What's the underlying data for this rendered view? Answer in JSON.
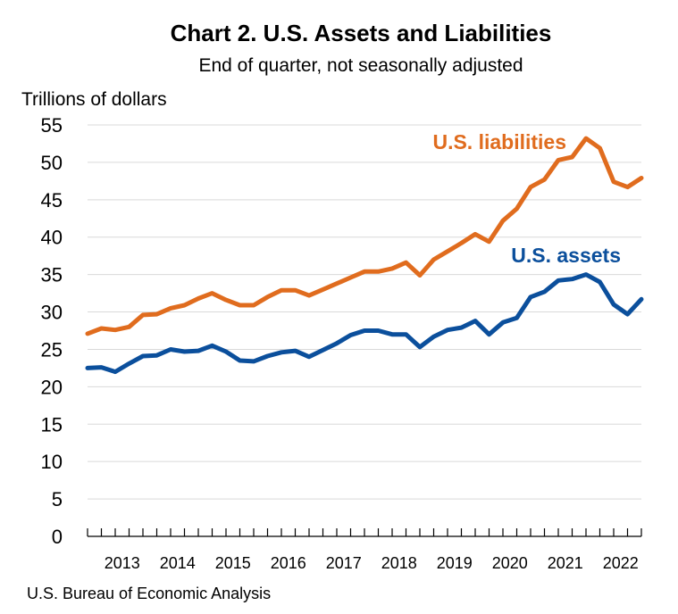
{
  "chart_data": {
    "type": "line",
    "title": "Chart 2. U.S. Assets and Liabilities",
    "subtitle": "End of quarter, not seasonally adjusted",
    "ylabel": "Trillions of dollars",
    "xlabel": "",
    "ylim": [
      0,
      55
    ],
    "yticks": [
      0,
      5,
      10,
      15,
      20,
      25,
      30,
      35,
      40,
      45,
      50,
      55
    ],
    "grid": true,
    "x_year_labels": [
      "2013",
      "2014",
      "2015",
      "2016",
      "2017",
      "2018",
      "2019",
      "2020",
      "2021",
      "2022"
    ],
    "x": [
      "2012 Q4",
      "2013 Q1",
      "2013 Q2",
      "2013 Q3",
      "2013 Q4",
      "2014 Q1",
      "2014 Q2",
      "2014 Q3",
      "2014 Q4",
      "2015 Q1",
      "2015 Q2",
      "2015 Q3",
      "2015 Q4",
      "2016 Q1",
      "2016 Q2",
      "2016 Q3",
      "2016 Q4",
      "2017 Q1",
      "2017 Q2",
      "2017 Q3",
      "2017 Q4",
      "2018 Q1",
      "2018 Q2",
      "2018 Q3",
      "2018 Q4",
      "2019 Q1",
      "2019 Q2",
      "2019 Q3",
      "2019 Q4",
      "2020 Q1",
      "2020 Q2",
      "2020 Q3",
      "2020 Q4",
      "2021 Q1",
      "2021 Q2",
      "2021 Q3",
      "2021 Q4",
      "2022 Q1",
      "2022 Q2",
      "2022 Q3",
      "2022 Q4"
    ],
    "series": [
      {
        "name": "U.S. liabilities",
        "color": "#E06C1E",
        "values": [
          27.1,
          27.8,
          27.6,
          28.0,
          29.6,
          29.7,
          30.5,
          30.9,
          31.8,
          32.5,
          31.6,
          30.9,
          30.9,
          32.0,
          32.9,
          32.9,
          32.2,
          33.0,
          33.8,
          34.6,
          35.4,
          35.4,
          35.8,
          36.6,
          34.9,
          37.0,
          38.1,
          39.2,
          40.4,
          39.4,
          42.2,
          43.8,
          46.7,
          47.7,
          50.3,
          50.7,
          53.2,
          51.9,
          47.4,
          46.7,
          47.9
        ]
      },
      {
        "name": "U.S. assets",
        "color": "#0B4F9C",
        "values": [
          22.5,
          22.6,
          22.0,
          23.1,
          24.1,
          24.2,
          25.0,
          24.7,
          24.8,
          25.5,
          24.7,
          23.5,
          23.4,
          24.1,
          24.6,
          24.8,
          24.0,
          24.9,
          25.8,
          26.9,
          27.5,
          27.5,
          27.0,
          27.0,
          25.3,
          26.7,
          27.6,
          27.9,
          28.8,
          27.0,
          28.6,
          29.2,
          32.0,
          32.7,
          34.2,
          34.4,
          35.0,
          34.0,
          31.0,
          29.7,
          31.7
        ]
      }
    ]
  },
  "source": "U.S. Bureau of Economic Analysis"
}
